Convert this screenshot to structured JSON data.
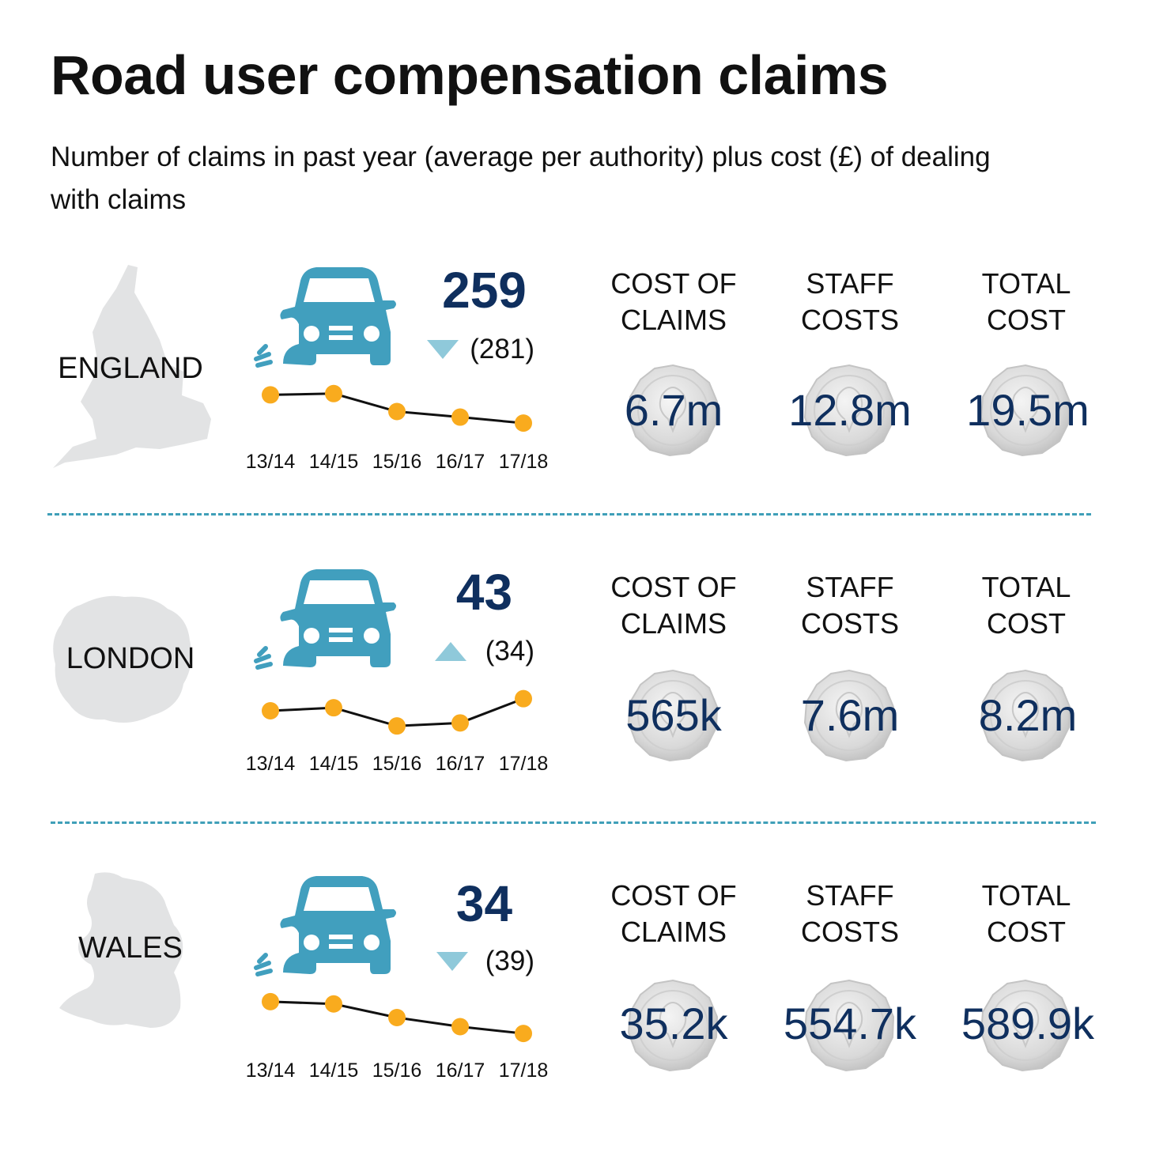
{
  "title": "Road user compensation claims",
  "subtitle": "Number of claims in past year (average per authority) plus cost (£) of dealing with claims",
  "colors": {
    "car": "#419fbe",
    "number": "#0f2f5e",
    "dot": "#f9ab1e",
    "line": "#111111",
    "map": "#e2e3e4",
    "arrow": "#8fc9da",
    "divider": "#3f9fb8"
  },
  "cost_labels": {
    "claims_line1": "COST OF",
    "claims_line2": "CLAIMS",
    "staff_line1": "STAFF",
    "staff_line2": "COSTS",
    "total_line1": "TOTAL",
    "total_line2": "COST"
  },
  "regions": [
    {
      "name": "ENGLAND",
      "claims": "259",
      "previous": "(281)",
      "trend": "down",
      "cost_of_claims": "6.7m",
      "staff_costs": "12.8m",
      "total_cost": "19.5m"
    },
    {
      "name": "LONDON",
      "claims": "43",
      "previous": "(34)",
      "trend": "up",
      "cost_of_claims": "565k",
      "staff_costs": "7.6m",
      "total_cost": "8.2m"
    },
    {
      "name": "WALES",
      "claims": "34",
      "previous": "(39)",
      "trend": "down",
      "cost_of_claims": "35.2k",
      "staff_costs": "554.7k",
      "total_cost": "589.9k"
    }
  ],
  "chart_data": [
    {
      "type": "line",
      "region": "ENGLAND",
      "x": [
        "13/14",
        "14/15",
        "15/16",
        "16/17",
        "17/18"
      ],
      "values": [
        325,
        328,
        286,
        273,
        259
      ],
      "ylim": [
        250,
        335
      ]
    },
    {
      "type": "line",
      "region": "LONDON",
      "x": [
        "13/14",
        "14/15",
        "15/16",
        "16/17",
        "17/18"
      ],
      "values": [
        39,
        40,
        34,
        35,
        43
      ],
      "ylim": [
        33,
        45
      ]
    },
    {
      "type": "line",
      "region": "WALES",
      "x": [
        "13/14",
        "14/15",
        "15/16",
        "16/17",
        "17/18"
      ],
      "values": [
        48,
        47,
        41,
        37,
        34
      ],
      "ylim": [
        33,
        49
      ]
    }
  ]
}
